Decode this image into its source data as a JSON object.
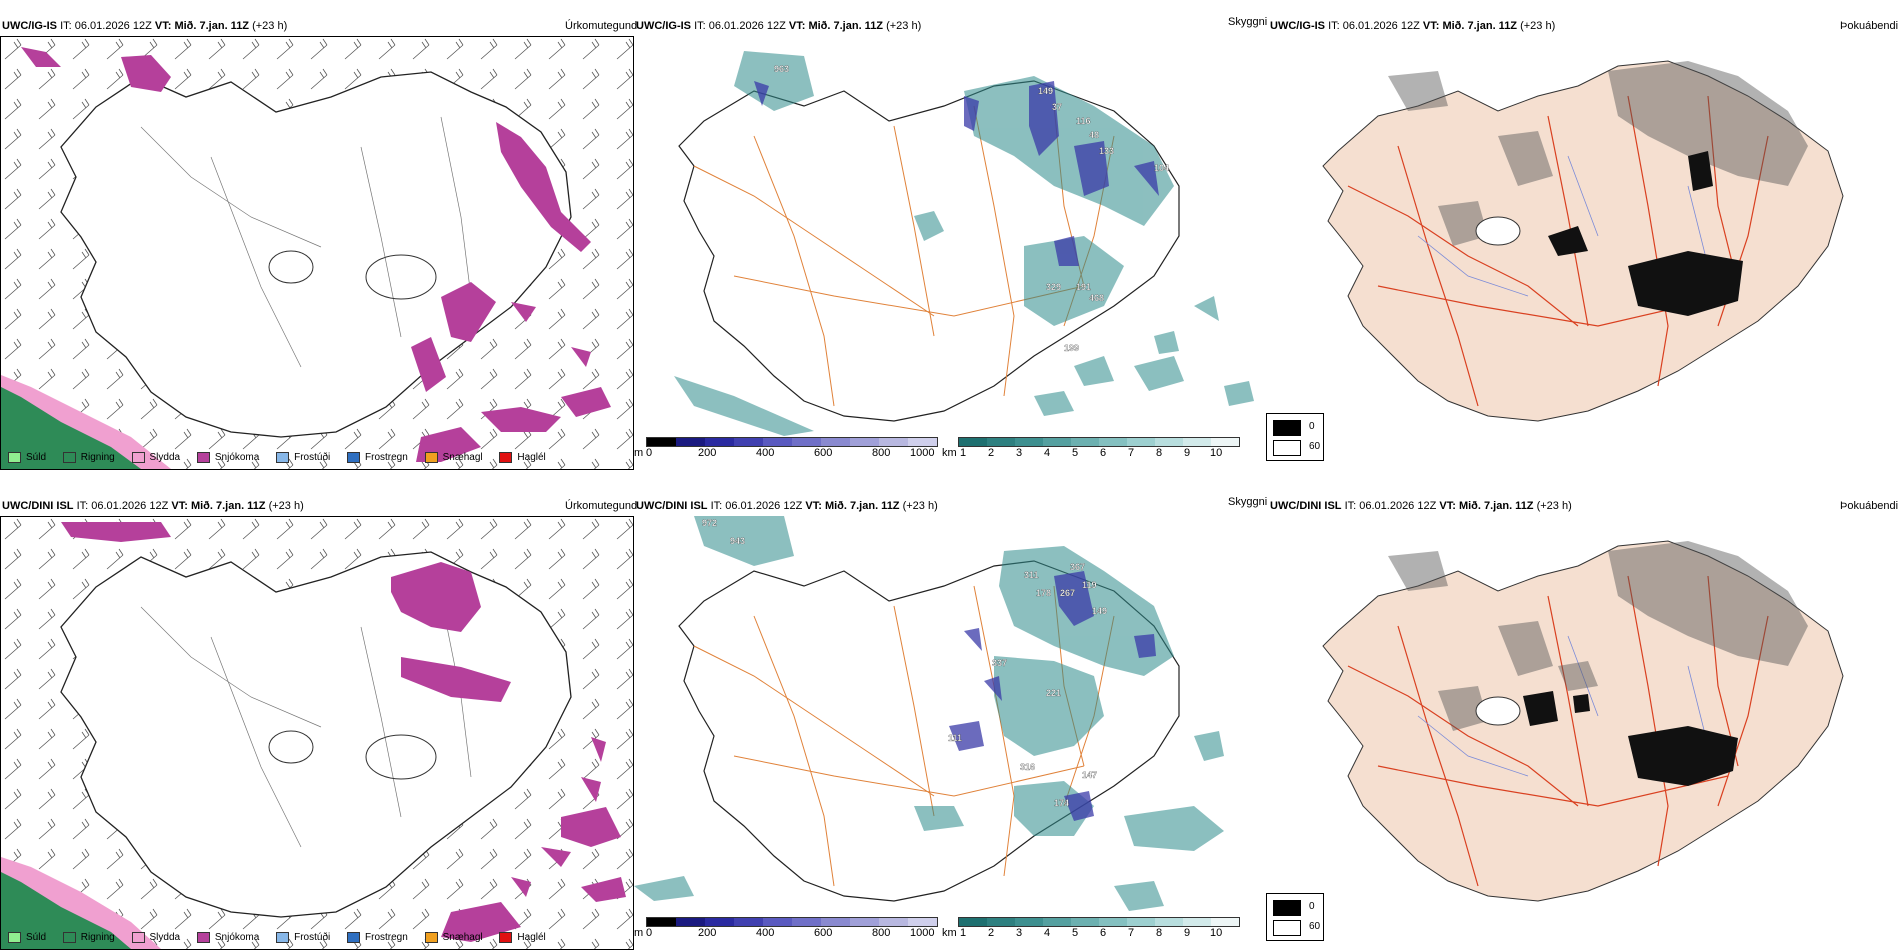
{
  "rows": [
    {
      "precip_panel": {
        "model": "UWC/IG-IS",
        "it_label": "IT:",
        "it_value": "06.01.2026 12Z",
        "vt_label": "VT:",
        "vt_value": "Mið. 7.jan. 11Z",
        "lead": "(+23 h)",
        "right_title": "Úrkomutegund"
      },
      "cloud_panel": {
        "model": "UWC/IG-IS",
        "it_label": "IT:",
        "it_value": "06.01.2026 12Z",
        "vt_label": "VT:",
        "vt_value": "Mið. 7.jan. 11Z",
        "lead": "(+23 h)",
        "right_title": "Skyggni",
        "labels": [
          "963",
          "149",
          "37",
          "116",
          "48",
          "133",
          "104",
          "329",
          "191",
          "468",
          "199"
        ]
      },
      "fog_panel": {
        "model": "UWC/IG-IS",
        "it_label": "IT:",
        "it_value": "06.01.2026 12Z",
        "vt_label": "VT:",
        "vt_value": "Mið. 7.jan. 11Z",
        "lead": "(+23 h)",
        "right_title": "Þokuábendi"
      }
    },
    {
      "precip_panel": {
        "model": "UWC/DINI ISL",
        "it_label": "IT:",
        "it_value": "06.01.2026 12Z",
        "vt_label": "VT:",
        "vt_value": "Mið. 7.jan. 11Z",
        "lead": "(+23 h)",
        "right_title": "Úrkomutegund"
      },
      "cloud_panel": {
        "model": "UWC/DINI ISL",
        "it_label": "IT:",
        "it_value": "06.01.2026 12Z",
        "vt_label": "VT:",
        "vt_value": "Mið. 7.jan. 11Z",
        "lead": "(+23 h)",
        "right_title": "Skyggni",
        "labels": [
          "972",
          "943",
          "311",
          "367",
          "178",
          "267",
          "119",
          "149",
          "337",
          "221",
          "111",
          "316",
          "147",
          "174"
        ]
      },
      "fog_panel": {
        "model": "UWC/DINI ISL",
        "it_label": "IT:",
        "it_value": "06.01.2026 12Z",
        "vt_label": "VT:",
        "vt_value": "Mið. 7.jan. 11Z",
        "lead": "(+23 h)",
        "right_title": "Þokuábendi"
      }
    }
  ],
  "precip_legend": [
    {
      "label": "Súld",
      "color": "#90ee90"
    },
    {
      "label": "Rigning",
      "color": "#2e8b57"
    },
    {
      "label": "Slydda",
      "color": "#f0a0d0"
    },
    {
      "label": "Snjókoma",
      "color": "#b5409b"
    },
    {
      "label": "Frostúði",
      "color": "#87b7e8"
    },
    {
      "label": "Frostregn",
      "color": "#2f6fc0"
    },
    {
      "label": "Snæhagl",
      "color": "#f0a020"
    },
    {
      "label": "Haglél",
      "color": "#e01010"
    }
  ],
  "cloud_base_bar": {
    "unit": "m",
    "ticks": [
      "0",
      "200",
      "400",
      "600",
      "800",
      "1000"
    ],
    "colors": [
      "#000000",
      "#1a1a80",
      "#2a2aa0",
      "#4040b0",
      "#5a5ac0",
      "#7070c8",
      "#8a8ad0",
      "#a0a0d8",
      "#b8b8e0",
      "#d0d0ec"
    ]
  },
  "visibility_bar": {
    "unit": "km",
    "ticks": [
      "1",
      "2",
      "3",
      "4",
      "5",
      "6",
      "7",
      "8",
      "9",
      "10"
    ],
    "colors": [
      "#1e7070",
      "#2e8080",
      "#3e9090",
      "#55a0a0",
      "#6cb0b0",
      "#84c0c0",
      "#9dd0d0",
      "#b8dede",
      "#d2eaea",
      "#eef6f6"
    ]
  },
  "fog_legend": {
    "values": [
      "0",
      "60"
    ],
    "colors": [
      "#000000",
      "#ffffff"
    ]
  },
  "colors": {
    "snow": "#b5409b",
    "rain": "#2e8b57",
    "sleet": "#f0a0d0",
    "ice_pellets": "#f0a020",
    "cloud_base": "#3a3aa8",
    "visibility": "#2e8b8b",
    "roads": "#e0823a",
    "land_fog": "#f5dfd0",
    "fog_roads": "#d94020",
    "rivers": "#7a8ad8"
  }
}
